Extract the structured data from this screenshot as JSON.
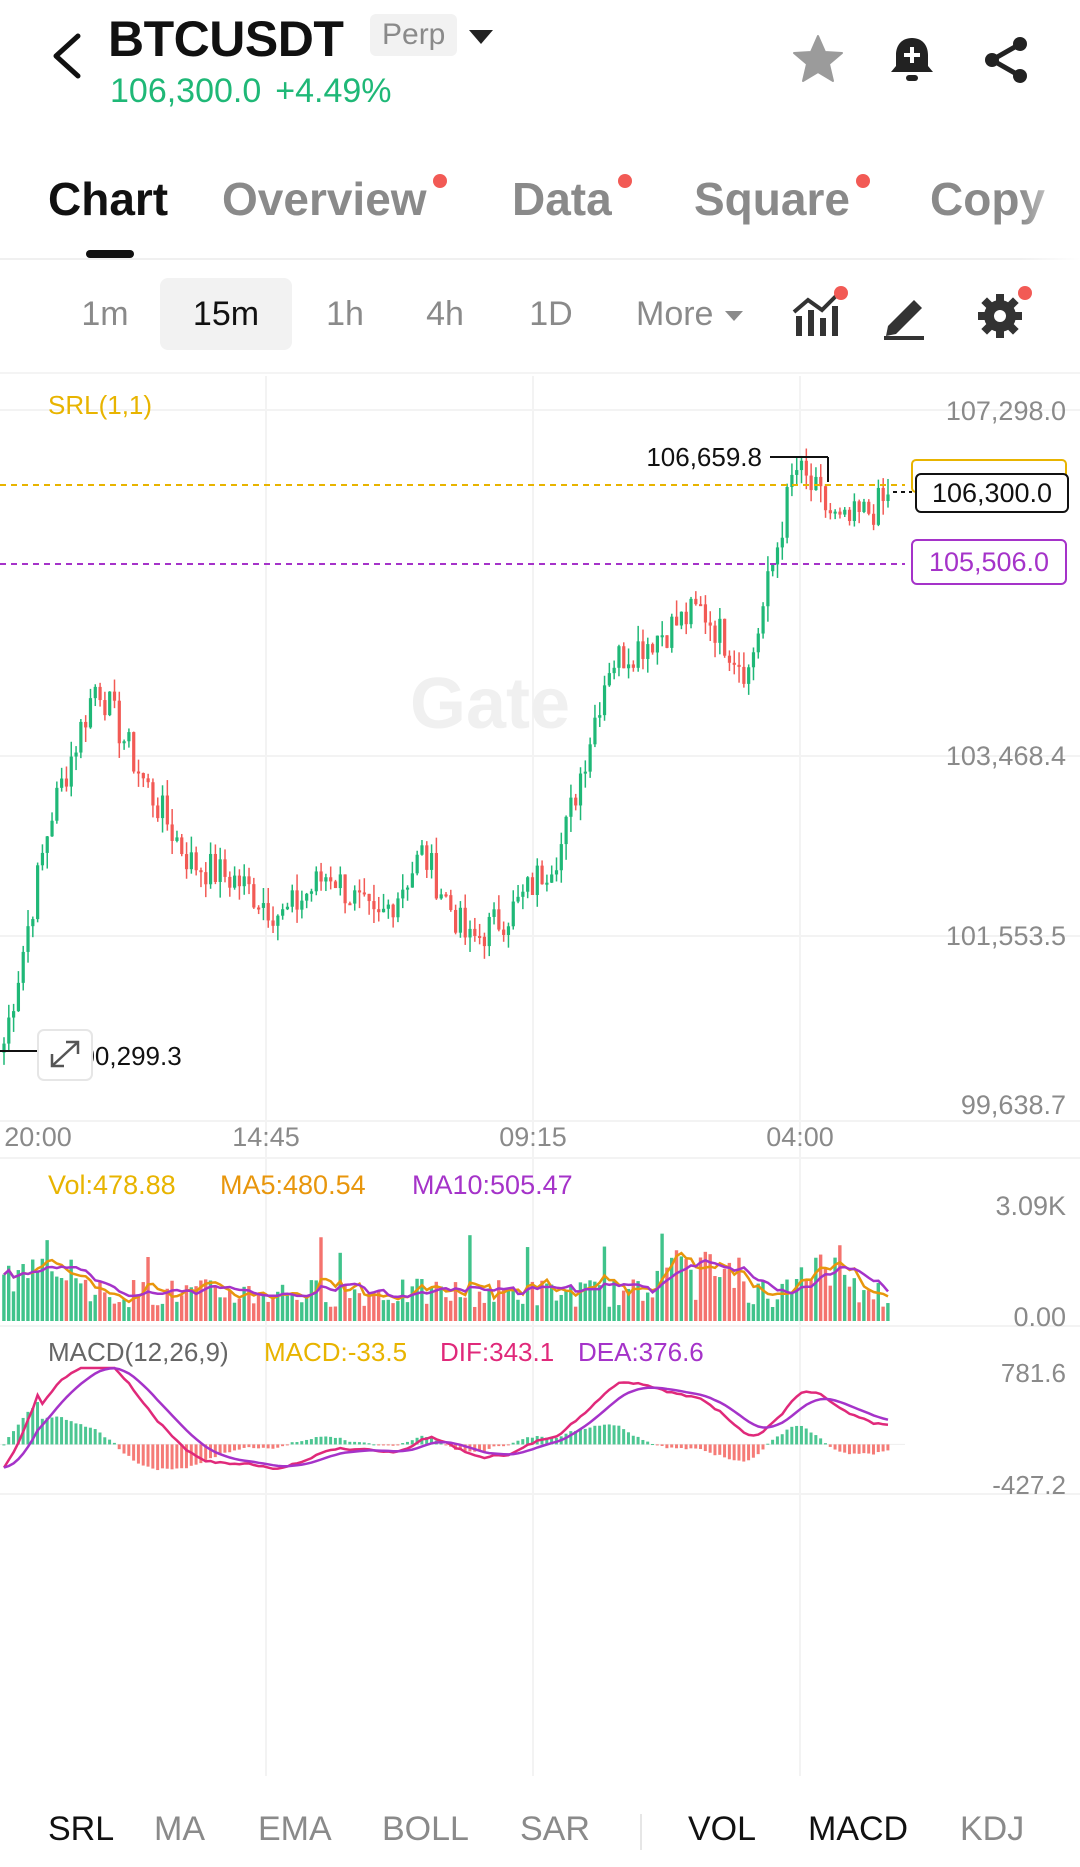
{
  "header": {
    "symbol": "BTCUSDT",
    "badge": "Perp",
    "price": "106,300.0",
    "change": "+4.49%",
    "icons": [
      "back-icon",
      "star-icon",
      "bell-add-icon",
      "share-icon"
    ]
  },
  "tabs": [
    {
      "label": "Chart",
      "active": true,
      "dot": false
    },
    {
      "label": "Overview",
      "active": false,
      "dot": true
    },
    {
      "label": "Data",
      "active": false,
      "dot": true
    },
    {
      "label": "Square",
      "active": false,
      "dot": true
    },
    {
      "label": "Copy",
      "active": false,
      "dot": false
    }
  ],
  "timeframes": [
    "1m",
    "15m",
    "1h",
    "4h",
    "1D"
  ],
  "active_timeframe": "15m",
  "more_label": "More",
  "main_chart": {
    "indicator_label": "SRL(1,1)",
    "price_labels": [
      "107,298.0",
      "103,468.4",
      "101,553.5",
      "99,638.7"
    ],
    "high_label": "106,659.8",
    "low_label": "100,299.3",
    "current_price_tag": "106,300.0",
    "srl_tag": "105,506.0",
    "time_labels": [
      "20:00",
      "14:45",
      "09:15",
      "04:00"
    ],
    "watermark": "Gate"
  },
  "volume_panel": {
    "vol": "Vol:478.88",
    "ma5": "MA5:480.54",
    "ma10": "MA10:505.47",
    "axis_top": "3.09K",
    "axis_bottom": "0.00"
  },
  "macd_panel": {
    "title": "MACD(12,26,9)",
    "macd": "MACD:-33.5",
    "dif": "DIF:343.1",
    "dea": "DEA:376.6",
    "axis_top": "781.6",
    "axis_bottom": "-427.2"
  },
  "indicator_tabs": [
    {
      "label": "SRL",
      "active": true
    },
    {
      "label": "MA",
      "active": false
    },
    {
      "label": "EMA",
      "active": false
    },
    {
      "label": "BOLL",
      "active": false
    },
    {
      "label": "SAR",
      "active": false
    },
    {
      "label": "VOL",
      "active": true
    },
    {
      "label": "MACD",
      "active": true
    },
    {
      "label": "KDJ",
      "active": false
    }
  ],
  "colors": {
    "up": "#1fb877",
    "down": "#f25a55",
    "srl_yellow": "#e8b400",
    "srl_purple": "#a533c9",
    "ma5": "#e8960c",
    "ma10": "#a533c9",
    "dif": "#e0297a",
    "dea": "#a533c9"
  },
  "chart_data": {
    "type": "candlestick",
    "interval": "15m",
    "y_range": [
      99638.7,
      107298.0
    ],
    "series_anchor_prices": [
      100299.3,
      102800,
      104300,
      103200,
      102300,
      102100,
      101700,
      102200,
      101600,
      102400,
      101400,
      101800,
      102500,
      104500,
      104800,
      105100,
      104400,
      106659.8,
      106000,
      106300.0
    ],
    "volume_range": [
      0,
      3090
    ],
    "macd_range": [
      -427.2,
      781.6
    ]
  }
}
